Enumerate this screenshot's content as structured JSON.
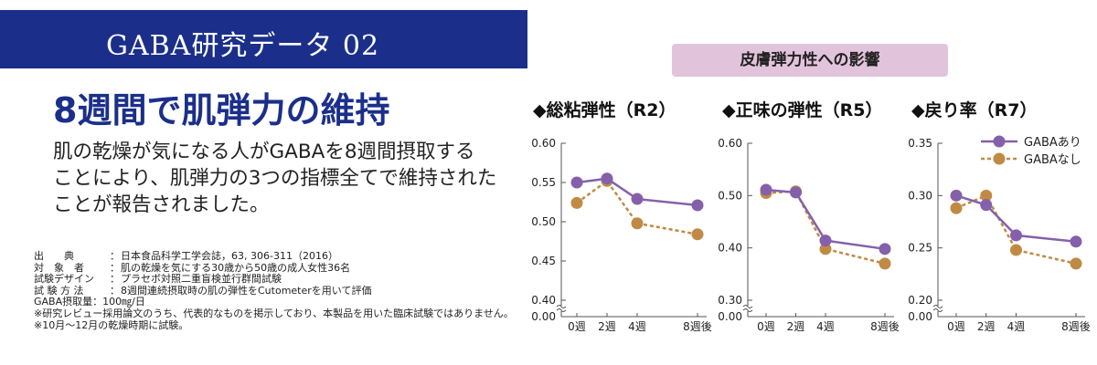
{
  "banner": {
    "title": "GABA研究データ 02"
  },
  "headline": "8週間で肌弾力の維持",
  "body": [
    "肌の乾燥が気になる人がGABAを8週間摂取する",
    "ことにより、肌弾力の3つの指標全てで維持された",
    "ことが報告されました。"
  ],
  "notes": {
    "rows": [
      {
        "key": "出　　典",
        "value": "日本食品科学工学会誌，63, 306-311（2016）"
      },
      {
        "key": "対　象　者",
        "value": "肌の乾燥を気にする30歳から50歳の成人女性36名"
      },
      {
        "key": "試験デザイン",
        "value": "プラセボ対照二重盲検並行群間試験"
      },
      {
        "key": "試 験 方 法",
        "value": "8週間連続摂取時の肌の弾性をCutometerを用いて評価"
      }
    ],
    "dose": "GABA摂取量：100㎎/日",
    "disclaimer1": "※研究レビュー採用論文のうち、代表的なものを掲示しており、本製品を用いた臨床試験ではありません。",
    "disclaimer2": "※10月～12月の乾燥時期に試験。",
    "separator": "："
  },
  "section_title": "皮膚弾力性への影響",
  "colors": {
    "banner": "#1b2f8a",
    "gaba": "#8560aa",
    "placebo": "#c08a45",
    "pill": "#e2c3dc",
    "axis": "#555555"
  },
  "chart_data": [
    {
      "type": "line",
      "title": "◆総粘弾性（R2）",
      "categories": [
        "0週",
        "2週",
        "4週",
        "8週後"
      ],
      "x": [
        0,
        2,
        4,
        8
      ],
      "ylim": [
        0.4,
        0.6
      ],
      "yticks": [
        "0.60",
        "0.55",
        "0.50",
        "0.45",
        "0.40"
      ],
      "yzero": "0.00",
      "series": [
        {
          "name": "GABAあり",
          "values": [
            0.55,
            0.555,
            0.529,
            0.521
          ]
        },
        {
          "name": "GABAなし",
          "values": [
            0.524,
            0.552,
            0.498,
            0.484
          ]
        }
      ]
    },
    {
      "type": "line",
      "title": "◆正味の弾性（R5）",
      "categories": [
        "0週",
        "2週",
        "4週",
        "8週後"
      ],
      "x": [
        0,
        2,
        4,
        8
      ],
      "ylim": [
        0.3,
        0.6
      ],
      "yticks": [
        "0.60",
        "0.50",
        "0.40",
        "0.30"
      ],
      "yzero": "0.00",
      "series": [
        {
          "name": "GABAあり",
          "values": [
            0.511,
            0.506,
            0.414,
            0.398
          ]
        },
        {
          "name": "GABAなし",
          "values": [
            0.505,
            0.508,
            0.398,
            0.37
          ]
        }
      ]
    },
    {
      "type": "line",
      "title": "◆戻り率（R7）",
      "categories": [
        "0週",
        "2週",
        "4週",
        "8週後"
      ],
      "x": [
        0,
        2,
        4,
        8
      ],
      "ylim": [
        0.2,
        0.35
      ],
      "yticks": [
        "0.35",
        "0.30",
        "0.25",
        "0.20"
      ],
      "yzero": "0.00",
      "legend": [
        "GABAあり",
        "GABAなし"
      ],
      "series": [
        {
          "name": "GABAあり",
          "values": [
            0.3,
            0.291,
            0.262,
            0.256
          ]
        },
        {
          "name": "GABAなし",
          "values": [
            0.288,
            0.3,
            0.248,
            0.235
          ]
        }
      ]
    }
  ]
}
